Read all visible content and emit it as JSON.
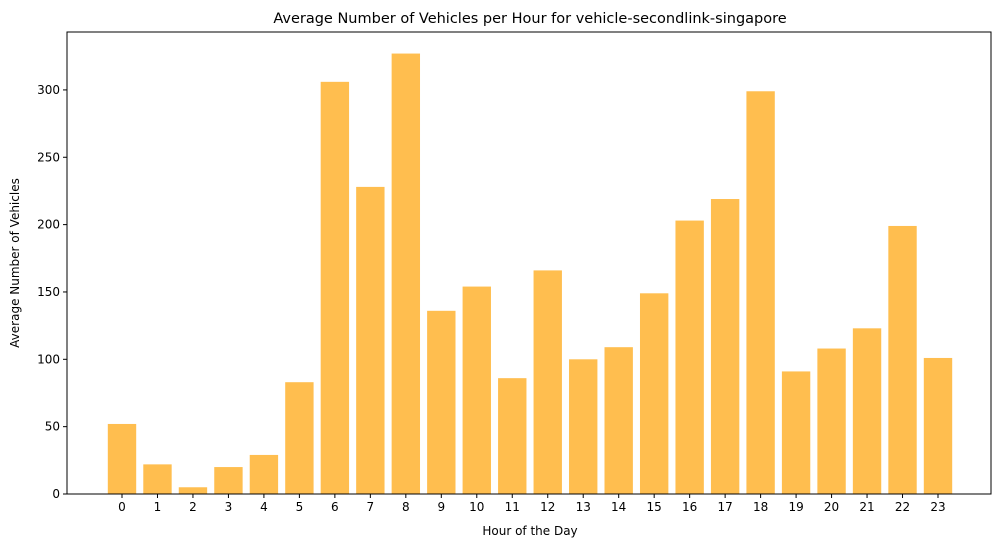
{
  "chart_data": {
    "type": "bar",
    "title": "Average Number of Vehicles per Hour for vehicle-secondlink-singapore",
    "xlabel": "Hour of the Day",
    "ylabel": "Average Number of Vehicles",
    "categories": [
      "0",
      "1",
      "2",
      "3",
      "4",
      "5",
      "6",
      "7",
      "8",
      "9",
      "10",
      "11",
      "12",
      "13",
      "14",
      "15",
      "16",
      "17",
      "18",
      "19",
      "20",
      "21",
      "22",
      "23"
    ],
    "values": [
      52,
      22,
      5,
      20,
      29,
      83,
      306,
      228,
      327,
      136,
      154,
      86,
      166,
      100,
      109,
      149,
      203,
      219,
      299,
      91,
      108,
      123,
      199,
      101
    ],
    "ylim": [
      0,
      343
    ],
    "yticks": [
      "0",
      "50",
      "100",
      "150",
      "200",
      "250",
      "300"
    ],
    "bar_color": "#ffbe4f",
    "grid": false,
    "legend": "none"
  }
}
